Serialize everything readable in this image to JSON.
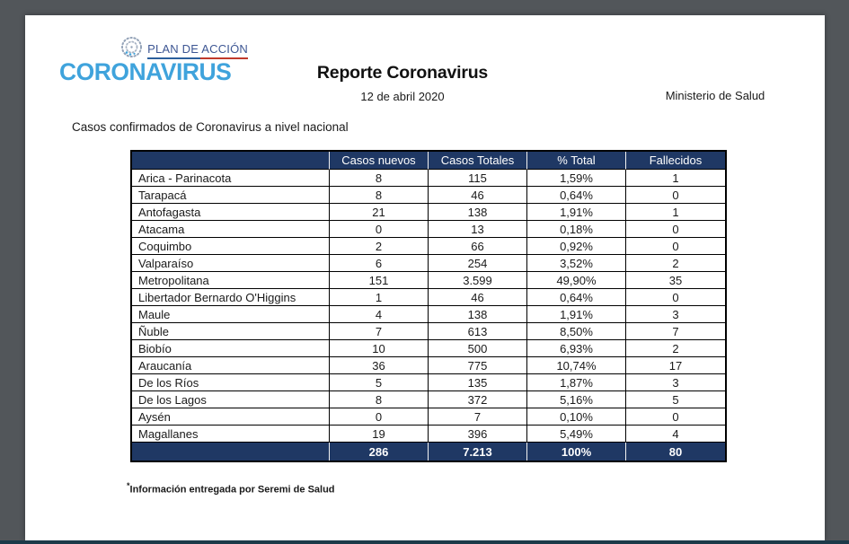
{
  "page": {
    "logo": {
      "plan_label": "PLAN DE ACCIÓN",
      "brand": "CORONAVIRUS"
    },
    "header": {
      "title": "Reporte Coronavirus",
      "date": "12 de abril 2020",
      "ministry": "Ministerio de Salud"
    },
    "section_title": "Casos confirmados de Coronavirus a nivel nacional",
    "footnote_marker": "*",
    "footnote": "Información entregada por Seremi de Salud"
  },
  "table": {
    "columns": [
      "",
      "Casos nuevos",
      "Casos Totales",
      "% Total",
      "Fallecidos"
    ],
    "rows": [
      [
        "Arica - Parinacota",
        "8",
        "115",
        "1,59%",
        "1"
      ],
      [
        "Tarapacá",
        "8",
        "46",
        "0,64%",
        "0"
      ],
      [
        "Antofagasta",
        "21",
        "138",
        "1,91%",
        "1"
      ],
      [
        "Atacama",
        "0",
        "13",
        "0,18%",
        "0"
      ],
      [
        "Coquimbo",
        "2",
        "66",
        "0,92%",
        "0"
      ],
      [
        "Valparaíso",
        "6",
        "254",
        "3,52%",
        "2"
      ],
      [
        "Metropolitana",
        "151",
        "3.599",
        "49,90%",
        "35"
      ],
      [
        "Libertador Bernardo O'Higgins",
        "1",
        "46",
        "0,64%",
        "0"
      ],
      [
        "Maule",
        "4",
        "138",
        "1,91%",
        "3"
      ],
      [
        "Ñuble",
        "7",
        "613",
        "8,50%",
        "7"
      ],
      [
        "Biobío",
        "10",
        "500",
        "6,93%",
        "2"
      ],
      [
        "Araucanía",
        "36",
        "775",
        "10,74%",
        "17"
      ],
      [
        "De los Ríos",
        "5",
        "135",
        "1,87%",
        "3"
      ],
      [
        "De los Lagos",
        "8",
        "372",
        "5,16%",
        "5"
      ],
      [
        "Aysén",
        "0",
        "7",
        "0,10%",
        "0"
      ],
      [
        "Magallanes",
        "19",
        "396",
        "5,49%",
        "4"
      ]
    ],
    "total_row": [
      "",
      "286",
      "7.213",
      "100%",
      "80"
    ]
  },
  "colors": {
    "header_navy": "#1F3864",
    "brand_blue": "#3FA3DC",
    "plan_navy": "#3D5693",
    "underline_blue": "#2C5F9C",
    "underline_red": "#C0392B",
    "canvas_gray": "#52565A",
    "bottom_line": "#1C3A49"
  }
}
